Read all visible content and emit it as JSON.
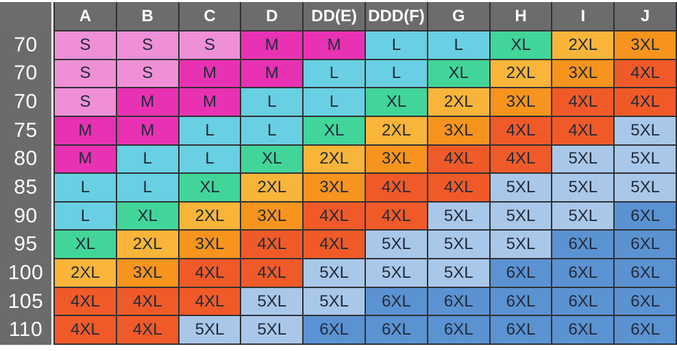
{
  "ui_colors": {
    "page_bg": "#ffffff",
    "header_bg": "#6d6c6d",
    "label_bg": "#6b6b6b",
    "border": "#303033",
    "header_text": "#ffffff",
    "cell_text": "#222b3a"
  },
  "table": {
    "corner_label": "",
    "size_colors": {
      "S": "#ef90d7",
      "M": "#e832b3",
      "L": "#68d0e2",
      "XL": "#42d59a",
      "2XL": "#f9b53a",
      "3XL": "#f7941e",
      "4XL": "#f05a28",
      "5XL": "#a9c7e9",
      "6XL": "#5b92d2"
    }
  },
  "chart_data": {
    "type": "table",
    "columns": [
      "A",
      "B",
      "C",
      "D",
      "DD(E)",
      "DDD(F)",
      "G",
      "H",
      "I",
      "J"
    ],
    "row_labels": [
      "70",
      "70",
      "70",
      "75",
      "80",
      "85",
      "90",
      "95",
      "100",
      "105",
      "110"
    ],
    "rows": [
      [
        "S",
        "S",
        "S",
        "M",
        "M",
        "L",
        "L",
        "XL",
        "2XL",
        "3XL"
      ],
      [
        "S",
        "S",
        "M",
        "M",
        "L",
        "L",
        "XL",
        "2XL",
        "3XL",
        "4XL"
      ],
      [
        "S",
        "M",
        "M",
        "L",
        "L",
        "XL",
        "2XL",
        "3XL",
        "4XL",
        "4XL"
      ],
      [
        "M",
        "M",
        "L",
        "L",
        "XL",
        "2XL",
        "3XL",
        "4XL",
        "4XL",
        "5XL"
      ],
      [
        "M",
        "L",
        "L",
        "XL",
        "2XL",
        "3XL",
        "4XL",
        "4XL",
        "5XL",
        "5XL"
      ],
      [
        "L",
        "L",
        "XL",
        "2XL",
        "3XL",
        "4XL",
        "4XL",
        "5XL",
        "5XL",
        "5XL"
      ],
      [
        "L",
        "XL",
        "2XL",
        "3XL",
        "4XL",
        "4XL",
        "5XL",
        "5XL",
        "5XL",
        "6XL"
      ],
      [
        "XL",
        "2XL",
        "3XL",
        "4XL",
        "4XL",
        "5XL",
        "5XL",
        "5XL",
        "6XL",
        "6XL"
      ],
      [
        "2XL",
        "3XL",
        "4XL",
        "4XL",
        "5XL",
        "5XL",
        "5XL",
        "6XL",
        "6XL",
        "6XL"
      ],
      [
        "4XL",
        "4XL",
        "4XL",
        "5XL",
        "5XL",
        "6XL",
        "6XL",
        "6XL",
        "6XL",
        "6XL"
      ],
      [
        "4XL",
        "4XL",
        "5XL",
        "5XL",
        "6XL",
        "6XL",
        "6XL",
        "6XL",
        "6XL",
        "6XL"
      ]
    ],
    "color_legend": {
      "S": "#ef90d7",
      "M": "#e832b3",
      "L": "#68d0e2",
      "XL": "#42d59a",
      "2XL": "#f9b53a",
      "3XL": "#f7941e",
      "4XL": "#f05a28",
      "5XL": "#a9c7e9",
      "6XL": "#5b92d2"
    },
    "grid": true,
    "legend_position": "none",
    "title": ""
  }
}
